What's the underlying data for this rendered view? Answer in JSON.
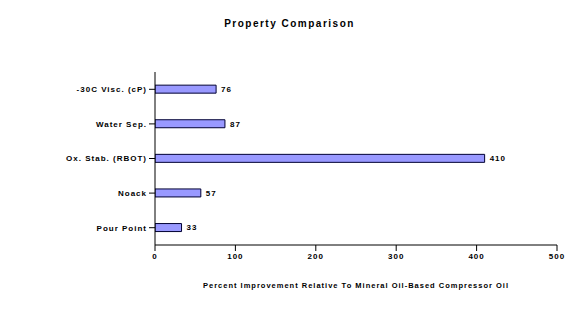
{
  "chart_data": {
    "type": "bar",
    "title": "Property Comparison",
    "orientation": "horizontal",
    "categories": [
      "-30C Visc. (cP)",
      "Water Sep.",
      "Ox. Stab. (RBOT)",
      "Noack",
      "Pour Point"
    ],
    "values": [
      76,
      87,
      410,
      57,
      33
    ],
    "color": "#9999ff",
    "xlabel": "Percent Improvement Relative To Mineral Oil-Based Compressor Oil",
    "xlim": [
      0,
      500
    ],
    "xticks": [
      0,
      100,
      200,
      300,
      400,
      500
    ],
    "data_labels": true,
    "grid": false
  }
}
